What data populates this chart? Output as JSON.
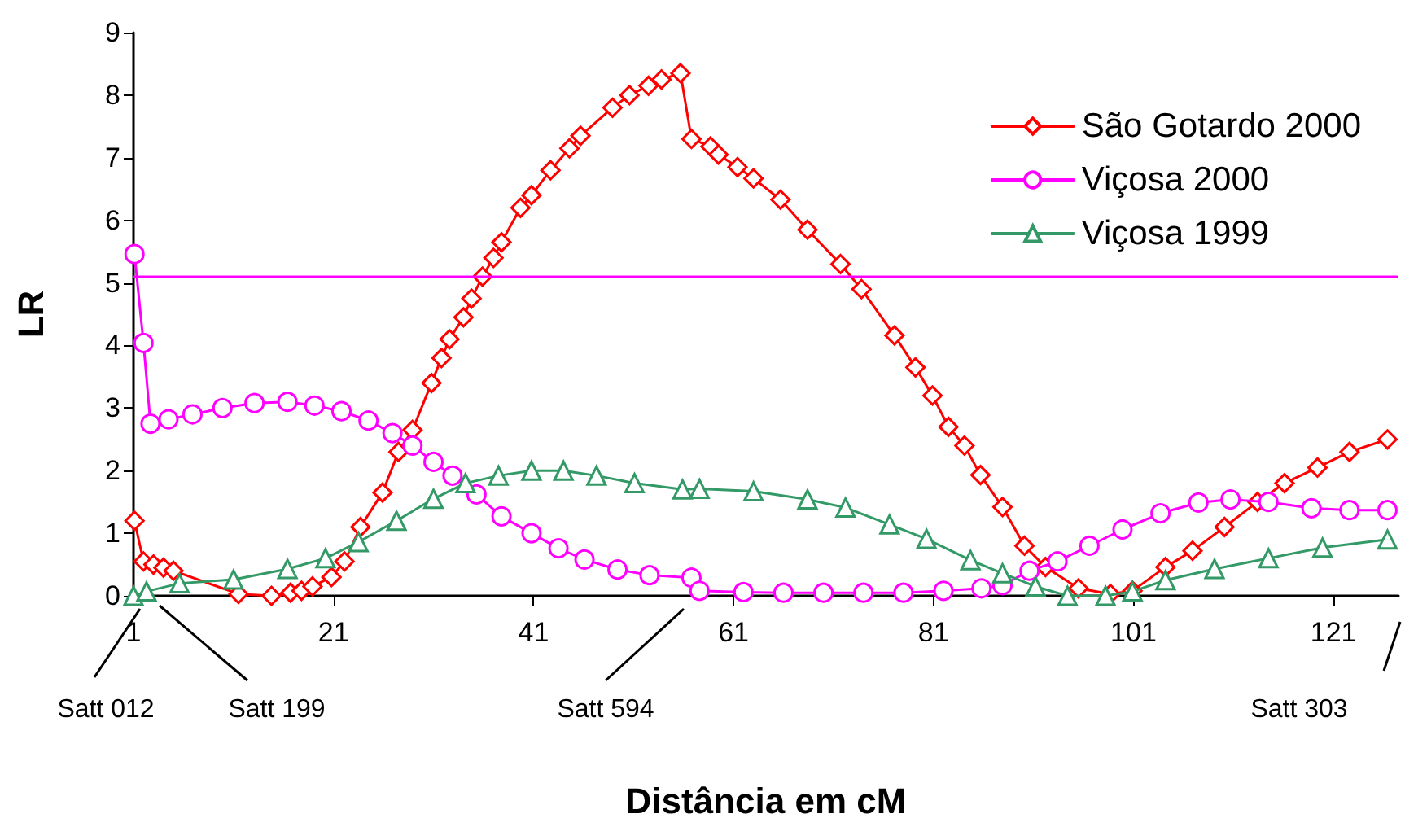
{
  "chart_data": {
    "type": "line",
    "xlabel": "Distância em cM",
    "ylabel": "LR",
    "xlim": [
      1,
      127.5
    ],
    "xticks": [
      1,
      21,
      41,
      61,
      81,
      101,
      121
    ],
    "ylim": [
      0,
      9
    ],
    "yticks": [
      0,
      1,
      2,
      3,
      4,
      5,
      6,
      7,
      8,
      9
    ],
    "grid": false,
    "legend": "top right",
    "line_style": "solid",
    "series": [
      {
        "name": "São Gotardo 2000",
        "color": "#ff0000",
        "marker": "diamond",
        "x": [
          1.1,
          2,
          3,
          4,
          5,
          11.5,
          14.8,
          16.7,
          17.8,
          18.9,
          20.8,
          22.1,
          23.7,
          25.9,
          27.5,
          28.9,
          30.8,
          31.8,
          32.6,
          34,
          34.8,
          35.9,
          37,
          37.8,
          39.7,
          40.8,
          42.7,
          44.6,
          45.7,
          48.9,
          50.6,
          52.5,
          53.8,
          55.7,
          56.8,
          58.7,
          59.5,
          61.4,
          63,
          65.7,
          68.4,
          71.7,
          73.8,
          77.1,
          79.2,
          80.9,
          82.5,
          84.1,
          85.7,
          87.9,
          90.1,
          92.2,
          95.5,
          98.7,
          100.9,
          104.2,
          106.9,
          110.1,
          113.4,
          116.1,
          119.4,
          122.6,
          126.4
        ],
        "values": [
          1.2,
          0.55,
          0.5,
          0.45,
          0.4,
          0.03,
          0,
          0.05,
          0.08,
          0.15,
          0.3,
          0.55,
          1.1,
          1.65,
          2.3,
          2.65,
          3.4,
          3.8,
          4.1,
          4.45,
          4.75,
          5.1,
          5.4,
          5.65,
          6.2,
          6.4,
          6.8,
          7.15,
          7.35,
          7.8,
          8,
          8.15,
          8.25,
          8.35,
          7.3,
          7.18,
          7.05,
          6.85,
          6.67,
          6.33,
          5.85,
          5.3,
          4.9,
          4.16,
          3.65,
          3.2,
          2.7,
          2.4,
          1.93,
          1.42,
          0.8,
          0.46,
          0.12,
          0.03,
          0.08,
          0.46,
          0.72,
          1.1,
          1.5,
          1.8,
          2.05,
          2.3,
          2.5
        ]
      },
      {
        "name": "Viçosa 2000",
        "color": "#ff00ff",
        "marker": "circle",
        "x": [
          1.1,
          2,
          2.7,
          4.5,
          6.9,
          9.9,
          13.1,
          16.4,
          19.1,
          21.8,
          24.5,
          26.9,
          28.9,
          31,
          32.9,
          35.3,
          37.8,
          40.8,
          43.5,
          46.1,
          49.4,
          52.6,
          56.8,
          57.6,
          62,
          66,
          70,
          74,
          78,
          82,
          85.8,
          87.9,
          90.6,
          93.4,
          96.6,
          99.9,
          103.7,
          107.5,
          110.7,
          114.5,
          118.8,
          122.6,
          126.4
        ],
        "values": [
          5.46,
          4.04,
          2.75,
          2.82,
          2.9,
          3,
          3.08,
          3.1,
          3.04,
          2.95,
          2.8,
          2.6,
          2.4,
          2.14,
          1.92,
          1.62,
          1.27,
          1,
          0.76,
          0.58,
          0.42,
          0.33,
          0.29,
          0.08,
          0.06,
          0.05,
          0.05,
          0.05,
          0.05,
          0.08,
          0.12,
          0.17,
          0.4,
          0.55,
          0.8,
          1.06,
          1.32,
          1.49,
          1.54,
          1.5,
          1.4,
          1.37,
          1.37
        ]
      },
      {
        "name": "Viçosa 1999",
        "color": "#339966",
        "marker": "triangle",
        "x": [
          1,
          2.3,
          5.6,
          11,
          16.4,
          20.2,
          23.5,
          27.3,
          31,
          34.2,
          37.5,
          40.8,
          44,
          47.3,
          51.1,
          55.9,
          57.6,
          63,
          68.4,
          72.2,
          76.6,
          80.3,
          84.7,
          87.9,
          91.2,
          94.4,
          98.2,
          100.9,
          104.2,
          109.1,
          114.5,
          119.9,
          126.4
        ],
        "values": [
          0,
          0.07,
          0.2,
          0.26,
          0.43,
          0.6,
          0.86,
          1.2,
          1.55,
          1.8,
          1.92,
          2,
          2,
          1.92,
          1.8,
          1.7,
          1.71,
          1.67,
          1.54,
          1.41,
          1.14,
          0.91,
          0.57,
          0.36,
          0.15,
          0,
          0,
          0.07,
          0.25,
          0.43,
          0.6,
          0.77,
          0.9
        ]
      }
    ],
    "ref_lines": [
      {
        "axis": "y",
        "value": 5.1,
        "color": "#ff00ff"
      }
    ],
    "annotations": [
      "Satt 012",
      "Satt 199",
      "Satt 594",
      "Satt 303"
    ]
  }
}
